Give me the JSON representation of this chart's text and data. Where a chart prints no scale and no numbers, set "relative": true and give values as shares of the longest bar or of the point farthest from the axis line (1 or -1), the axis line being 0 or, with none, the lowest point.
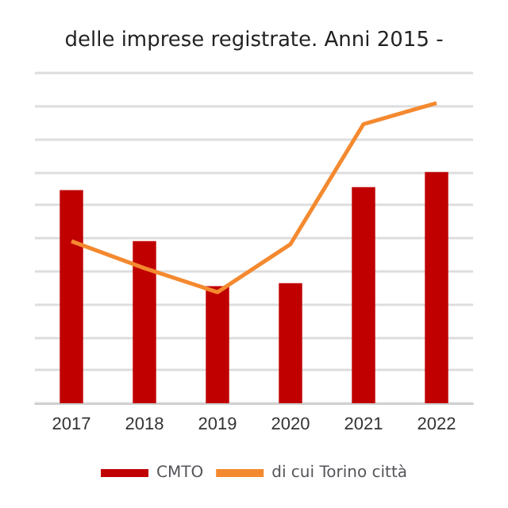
{
  "chart_data": {
    "type": "bar",
    "title": "delle imprese registrate. Anni 2015 -",
    "relative": true,
    "grid": "y",
    "legend": "bottom",
    "categories": [
      "2017",
      "2018",
      "2019",
      "2020",
      "2021",
      "2022"
    ],
    "series": [
      {
        "name": "CMTO",
        "color": "#c00000",
        "values": [
          0.71,
          0.54,
          0.39,
          0.4,
          0.72,
          0.77
        ]
      },
      {
        "name": "di cui Torino città",
        "type": "line",
        "color": "#f4892f",
        "marker": "none",
        "values": [
          0.54,
          0.45,
          0.37,
          0.53,
          0.93,
          1.0
        ]
      }
    ]
  }
}
